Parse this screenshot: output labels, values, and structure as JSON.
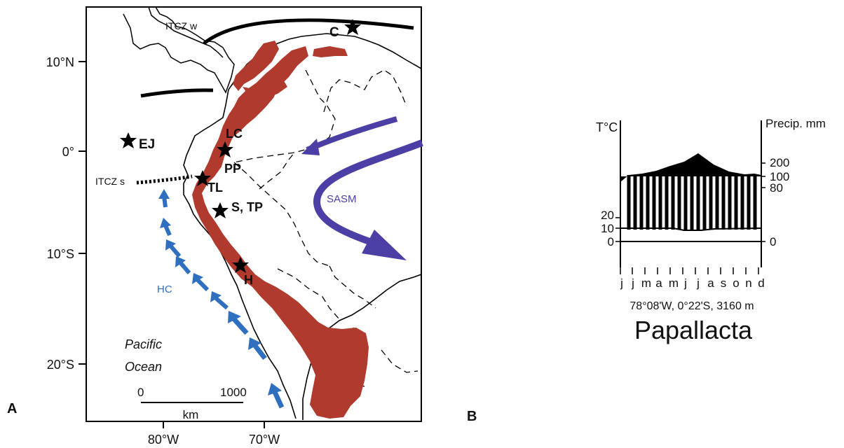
{
  "panel_a": {
    "panel_label": "A",
    "lat_ticks": [
      "10°N",
      "0°",
      "10°S",
      "20°S"
    ],
    "lon_ticks": [
      "80°W",
      "70°W"
    ],
    "labels": {
      "itcz_w": "ITCZ w",
      "itcz_s": "ITCZ s",
      "sasm": "SASM",
      "hc": "HC",
      "ocean_line1": "Pacific",
      "ocean_line2": "Ocean"
    },
    "scale_bar": {
      "start": "0",
      "end": "1000",
      "unit": "km"
    },
    "sites": [
      "C",
      "EJ",
      "LC",
      "PP",
      "TL",
      "S, TP",
      "H"
    ],
    "colors": {
      "andes": "#b03a2e",
      "sasm_arrow": "#4b3fa6",
      "hc_arrow": "#2f6fc0",
      "itcz_line": "#000000"
    }
  },
  "panel_b": {
    "panel_label": "B",
    "left_axis_title": "T°C",
    "right_axis_title": "Precip. mm",
    "left_ticks": [
      "20",
      "10",
      "0"
    ],
    "right_ticks": [
      "200",
      "100",
      "80",
      "0"
    ],
    "months": [
      "j",
      "j",
      "m",
      "a",
      "m",
      "j",
      "j",
      "a",
      "s",
      "o",
      "n",
      "d"
    ],
    "coordinates": "78°08'W, 0°22'S, 3160 m",
    "station": "Papallacta"
  }
}
